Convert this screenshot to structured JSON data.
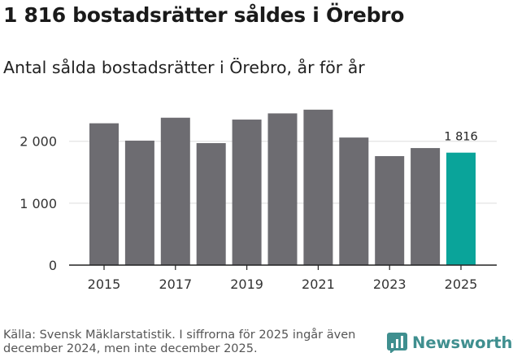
{
  "title": "1 816 bostadsrätter såldes i Örebro",
  "subtitle": "Antal sålda bostadsrätter i Örebro, år för år",
  "source": "Källa: Svensk Mäklarstatistik. I siffrorna för 2025 ingår även december 2024, men inte december 2025.",
  "brand": {
    "name": "Newsworthy",
    "icon": "newsworthy-logo-icon"
  },
  "colors": {
    "bar": "#6d6c71",
    "highlight": "#0aa49a",
    "grid": "#dddddd",
    "axis": "#222222",
    "brand": "#3f8f8f"
  },
  "chart_data": {
    "type": "bar",
    "categories": [
      "2015",
      "2016",
      "2017",
      "2018",
      "2019",
      "2020",
      "2021",
      "2022",
      "2023",
      "2024",
      "2025"
    ],
    "values": [
      2290,
      2010,
      2380,
      1970,
      2350,
      2450,
      2510,
      2060,
      1760,
      1890,
      1816
    ],
    "x_tick_labels": [
      "2015",
      "2017",
      "2019",
      "2021",
      "2023",
      "2025"
    ],
    "y_ticks": [
      0,
      1000,
      2000
    ],
    "y_tick_labels": [
      "0",
      "1 000",
      "2 000"
    ],
    "ylim": [
      0,
      2600
    ],
    "highlight_index": 10,
    "data_labels": [
      {
        "index": 10,
        "text": "1 816"
      }
    ],
    "title": "1 816 bostadsrätter såldes i Örebro",
    "xlabel": "",
    "ylabel": "",
    "grid": true
  }
}
